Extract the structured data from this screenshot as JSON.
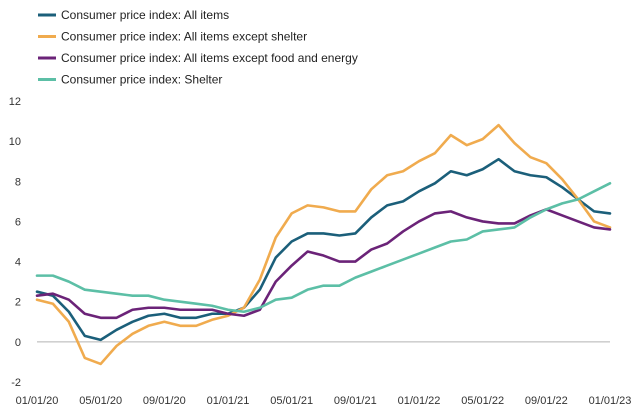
{
  "chart_data": {
    "type": "line",
    "title": "",
    "xlabel": "",
    "ylabel": "",
    "ylim": [
      -2,
      12
    ],
    "yticks": [
      -2,
      0,
      2,
      4,
      6,
      8,
      10,
      12
    ],
    "x_tick_labels": [
      "01/01/20",
      "05/01/20",
      "09/01/20",
      "01/01/21",
      "05/01/21",
      "09/01/21",
      "01/01/22",
      "05/01/22",
      "09/01/22",
      "01/01/23"
    ],
    "x": [
      "2020-01",
      "2020-02",
      "2020-03",
      "2020-04",
      "2020-05",
      "2020-06",
      "2020-07",
      "2020-08",
      "2020-09",
      "2020-10",
      "2020-11",
      "2020-12",
      "2021-01",
      "2021-02",
      "2021-03",
      "2021-04",
      "2021-05",
      "2021-06",
      "2021-07",
      "2021-08",
      "2021-09",
      "2021-10",
      "2021-11",
      "2021-12",
      "2022-01",
      "2022-02",
      "2022-03",
      "2022-04",
      "2022-05",
      "2022-06",
      "2022-07",
      "2022-08",
      "2022-09",
      "2022-10",
      "2022-11",
      "2022-12",
      "2023-01"
    ],
    "grid": false,
    "legend_position": "top-left",
    "series": [
      {
        "name": "Consumer price index: All items",
        "color": "#1b5f7a",
        "values": [
          2.5,
          2.3,
          1.5,
          0.3,
          0.1,
          0.6,
          1.0,
          1.3,
          1.4,
          1.2,
          1.2,
          1.4,
          1.4,
          1.7,
          2.6,
          4.2,
          5.0,
          5.4,
          5.4,
          5.3,
          5.4,
          6.2,
          6.8,
          7.0,
          7.5,
          7.9,
          8.5,
          8.3,
          8.6,
          9.1,
          8.5,
          8.3,
          8.2,
          7.7,
          7.1,
          6.5,
          6.4
        ]
      },
      {
        "name": "Consumer price index: All items except shelter",
        "color": "#f0ab4e",
        "values": [
          2.1,
          1.9,
          1.0,
          -0.8,
          -1.1,
          -0.2,
          0.4,
          0.8,
          1.0,
          0.8,
          0.8,
          1.1,
          1.3,
          1.7,
          3.1,
          5.2,
          6.4,
          6.8,
          6.7,
          6.5,
          6.5,
          7.6,
          8.3,
          8.5,
          9.0,
          9.4,
          10.3,
          9.8,
          10.1,
          10.8,
          9.9,
          9.2,
          8.9,
          8.1,
          7.1,
          6.0,
          5.7
        ]
      },
      {
        "name": "Consumer price index: All items except food and energy",
        "color": "#6b2378",
        "values": [
          2.3,
          2.4,
          2.1,
          1.4,
          1.2,
          1.2,
          1.6,
          1.7,
          1.7,
          1.6,
          1.6,
          1.6,
          1.4,
          1.3,
          1.6,
          3.0,
          3.8,
          4.5,
          4.3,
          4.0,
          4.0,
          4.6,
          4.9,
          5.5,
          6.0,
          6.4,
          6.5,
          6.2,
          6.0,
          5.9,
          5.9,
          6.3,
          6.6,
          6.3,
          6.0,
          5.7,
          5.6
        ]
      },
      {
        "name": "Consumer price index: Shelter",
        "color": "#5cbfa6",
        "values": [
          3.3,
          3.3,
          3.0,
          2.6,
          2.5,
          2.4,
          2.3,
          2.3,
          2.1,
          2.0,
          1.9,
          1.8,
          1.6,
          1.5,
          1.7,
          2.1,
          2.2,
          2.6,
          2.8,
          2.8,
          3.2,
          3.5,
          3.8,
          4.1,
          4.4,
          4.7,
          5.0,
          5.1,
          5.5,
          5.6,
          5.7,
          6.2,
          6.6,
          6.9,
          7.1,
          7.5,
          7.9
        ]
      }
    ]
  }
}
